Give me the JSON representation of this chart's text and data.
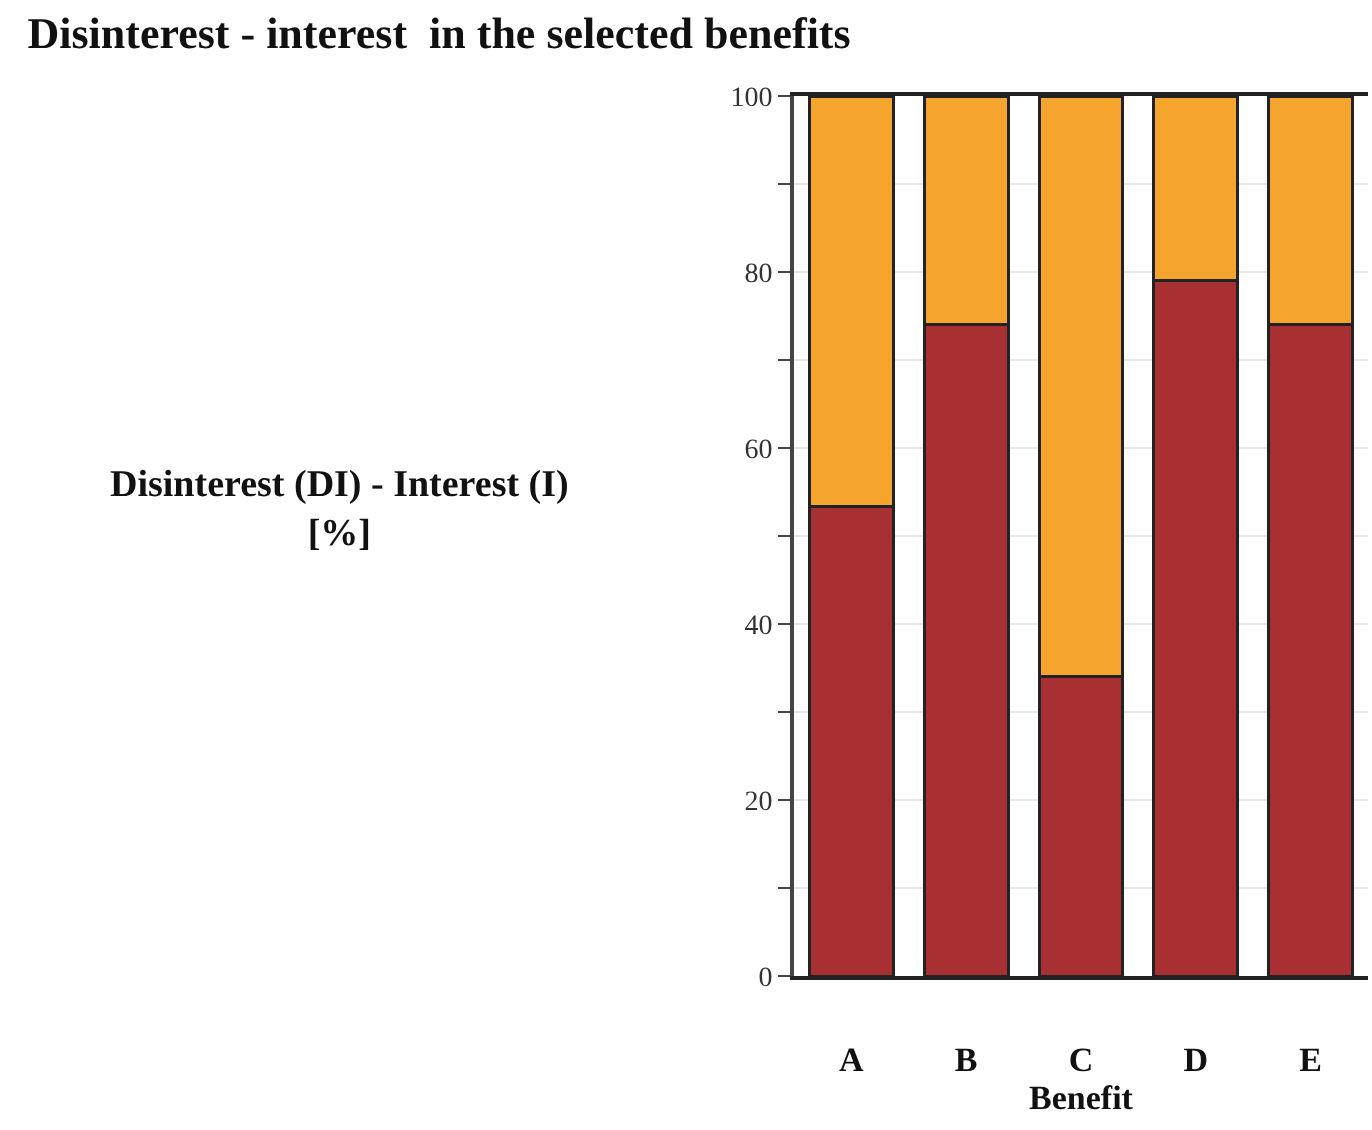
{
  "chart_data": {
    "type": "bar",
    "title": "Disinterest - interest  in the selected benefits",
    "xlabel": "Benefit",
    "ylabel": "Disinterest (DI) - Interest (I)\n[%]",
    "categories": [
      "A",
      "B",
      "C",
      "D",
      "E"
    ],
    "stacked": true,
    "series": [
      {
        "color": "#a83032",
        "values": [
          53.4,
          74,
          34,
          79,
          74
        ]
      },
      {
        "color": "#f5a42e",
        "values": [
          46.6,
          26,
          66,
          21,
          26
        ]
      }
    ],
    "ylim": [
      0,
      100
    ],
    "yticks": [
      0,
      {
        "value": 10,
        "label": null
      },
      20,
      {
        "value": 30,
        "label": null
      },
      40,
      {
        "value": 50,
        "label": null
      },
      60,
      {
        "value": 70,
        "label": null
      },
      80,
      {
        "value": 90,
        "label": null
      },
      100
    ],
    "grid": "y"
  }
}
